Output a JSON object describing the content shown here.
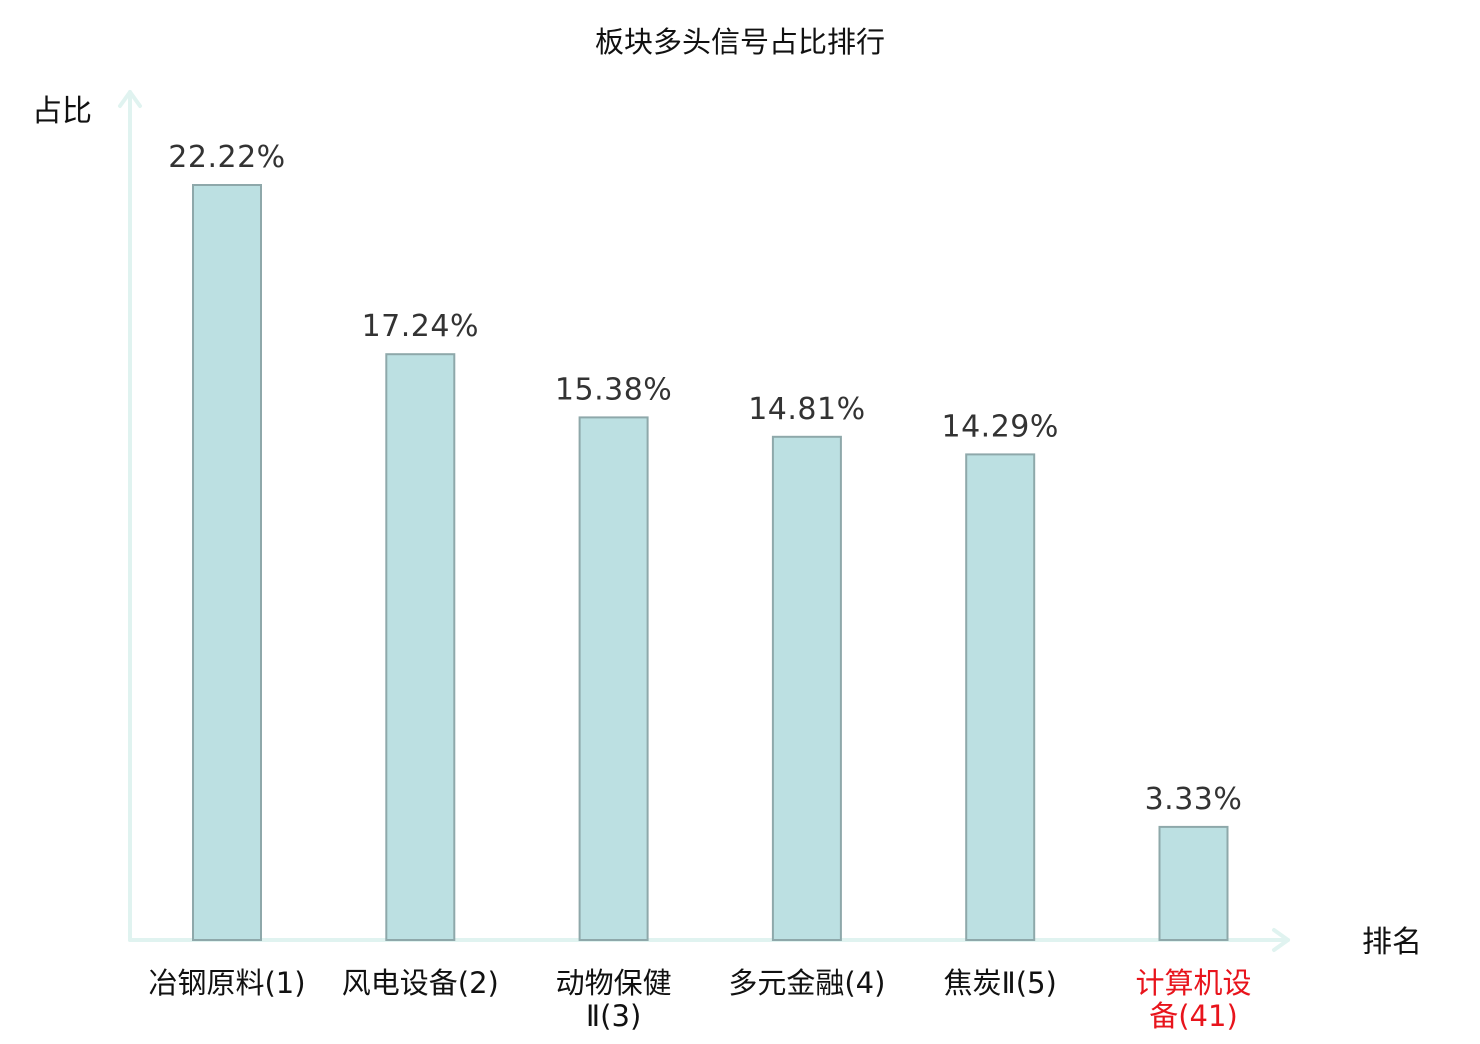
{
  "chart_data": {
    "type": "bar",
    "title": "板块多头信号占比排行",
    "ylabel": "占比",
    "xlabel": "排名",
    "ylim": [
      0,
      25
    ],
    "grid": false,
    "categories": [
      "冶钢原料(1)",
      "风电设备(2)",
      "动物保健Ⅱ(3)",
      "多元金融(4)",
      "焦炭Ⅱ(5)",
      "计算机设备(41)"
    ],
    "values": [
      22.22,
      17.24,
      15.38,
      14.81,
      14.29,
      3.33
    ],
    "value_labels": [
      "22.22%",
      "17.24%",
      "15.38%",
      "14.81%",
      "14.29%",
      "3.33%"
    ],
    "highlight_index": 5
  },
  "colors": {
    "bar_fill": "#bce0e2",
    "bar_stroke": "#8ea8aa",
    "axis": "#e0f3f0",
    "highlight_text": "#e8141c"
  }
}
